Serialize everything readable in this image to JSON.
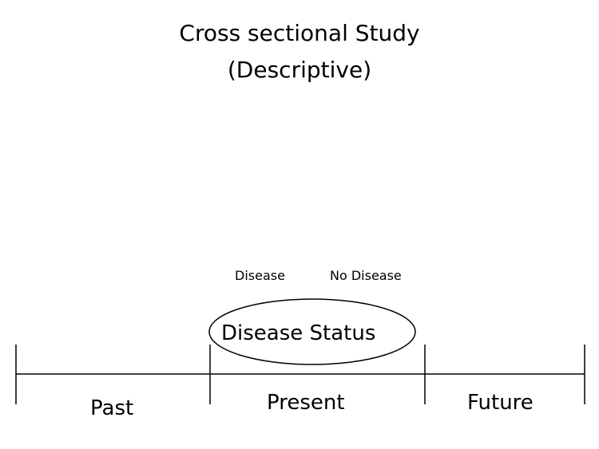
{
  "title": {
    "line1": "Cross sectional Study",
    "line2": "(Descriptive)"
  },
  "labels": {
    "disease": "Disease",
    "no_disease": "No Disease",
    "disease_status": "Disease  Status"
  },
  "timeline": {
    "segments": [
      "Past",
      "Present",
      "Future"
    ]
  },
  "colors": {
    "text": "#000000",
    "line": "#000000",
    "background": "#ffffff"
  }
}
